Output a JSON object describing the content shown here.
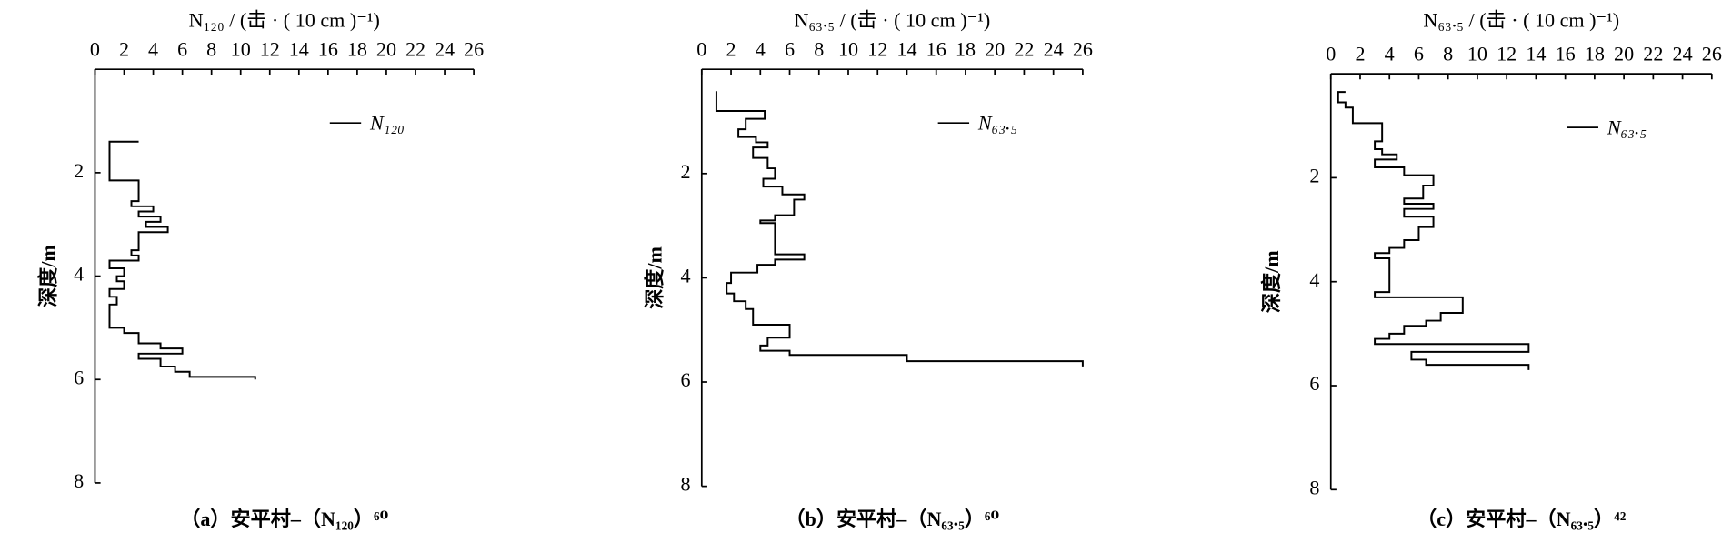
{
  "chart_data": [
    {
      "type": "line",
      "title": "N₁₂₀ / (击 · ( 10 cm )⁻¹)",
      "caption": "（a）安平村–（N₁₂₀）⁶⁰",
      "ylabel": "深度/m",
      "xlim": [
        0,
        26
      ],
      "xticks": [
        0,
        2,
        4,
        6,
        8,
        10,
        12,
        14,
        16,
        18,
        20,
        22,
        24,
        26
      ],
      "ylim": [
        0,
        8
      ],
      "yticks": [
        2,
        4,
        6,
        8
      ],
      "y_inverted": true,
      "legend": "upper right",
      "series": [
        {
          "name": "N₁₂₀",
          "color": "#000000",
          "x": [
            3,
            1,
            1,
            3,
            3,
            2.5,
            2.5,
            4,
            4,
            3,
            3,
            4.5,
            4.5,
            3.5,
            3.5,
            5,
            5,
            3,
            3,
            2.5,
            2.5,
            3,
            3,
            1,
            1,
            2,
            2,
            1.5,
            1.5,
            2,
            2,
            1,
            1,
            1.5,
            1.5,
            1,
            1,
            2,
            2,
            3,
            3,
            4.5,
            4.5,
            6,
            6,
            3,
            3,
            4.5,
            4.5,
            5.5,
            5.5,
            6.5,
            6.5,
            11,
            11
          ],
          "values": [
            1.4,
            1.4,
            2.15,
            2.15,
            2.55,
            2.55,
            2.65,
            2.65,
            2.75,
            2.75,
            2.85,
            2.85,
            2.95,
            2.95,
            3.05,
            3.05,
            3.15,
            3.15,
            3.5,
            3.5,
            3.6,
            3.6,
            3.7,
            3.7,
            3.85,
            3.85,
            4.0,
            4.0,
            4.1,
            4.1,
            4.25,
            4.25,
            4.4,
            4.4,
            4.55,
            4.55,
            5.0,
            5.0,
            5.1,
            5.1,
            5.3,
            5.3,
            5.4,
            5.4,
            5.5,
            5.5,
            5.6,
            5.6,
            5.75,
            5.75,
            5.85,
            5.85,
            5.95,
            5.95,
            6.0
          ]
        }
      ]
    },
    {
      "type": "line",
      "title": "N₆₃.₅ / (击 · ( 10 cm )⁻¹)",
      "caption": "（b）安平村–（N₆₃.₅）⁶⁰",
      "ylabel": "深度/m",
      "xlim": [
        0,
        26
      ],
      "xticks": [
        0,
        2,
        4,
        6,
        8,
        10,
        12,
        14,
        16,
        18,
        20,
        22,
        24,
        26
      ],
      "ylim": [
        0,
        8
      ],
      "yticks": [
        2,
        4,
        6,
        8
      ],
      "y_inverted": true,
      "legend": "upper right",
      "series": [
        {
          "name": "N₆₃.₅",
          "color": "#000000",
          "x": [
            1,
            1,
            4.3,
            4.3,
            3,
            3,
            2.5,
            2.5,
            3.7,
            3.7,
            4.5,
            4.5,
            3.5,
            3.5,
            4.5,
            4.5,
            5,
            5,
            4.2,
            4.2,
            5.5,
            5.5,
            7,
            7,
            6.3,
            6.3,
            5,
            5,
            4,
            4,
            5,
            5,
            7,
            7,
            5,
            5,
            3.8,
            3.8,
            2,
            2,
            1.7,
            1.7,
            2.2,
            2.2,
            3,
            3,
            3.5,
            3.5,
            6,
            6,
            4.5,
            4.5,
            4,
            4,
            6,
            6,
            14,
            14,
            26,
            26
          ],
          "values": [
            0.42,
            0.8,
            0.8,
            0.95,
            0.95,
            1.15,
            1.15,
            1.3,
            1.3,
            1.4,
            1.4,
            1.5,
            1.5,
            1.7,
            1.7,
            1.9,
            1.9,
            2.1,
            2.1,
            2.25,
            2.25,
            2.4,
            2.4,
            2.5,
            2.5,
            2.8,
            2.8,
            2.9,
            2.9,
            2.95,
            2.95,
            3.55,
            3.55,
            3.65,
            3.65,
            3.75,
            3.75,
            3.9,
            3.9,
            4.1,
            4.1,
            4.3,
            4.3,
            4.45,
            4.45,
            4.6,
            4.6,
            4.9,
            4.9,
            5.15,
            5.15,
            5.3,
            5.3,
            5.4,
            5.4,
            5.48,
            5.48,
            5.6,
            5.6,
            5.7
          ]
        }
      ]
    },
    {
      "type": "line",
      "title": "N₆₃.₅ / (击 · ( 10 cm )⁻¹)",
      "caption": "（c）安平村–（N₆₃.₅）⁴²",
      "ylabel": "深度/m",
      "xlim": [
        0,
        26
      ],
      "xticks": [
        0,
        2,
        4,
        6,
        8,
        10,
        12,
        14,
        16,
        18,
        20,
        22,
        24,
        26
      ],
      "ylim": [
        0,
        8
      ],
      "yticks": [
        2,
        4,
        6,
        8
      ],
      "y_inverted": true,
      "legend": "upper right",
      "series": [
        {
          "name": "N₆₃.₅",
          "color": "#000000",
          "x": [
            1,
            0.5,
            0.5,
            1,
            1,
            1.5,
            1.5,
            3.5,
            3.5,
            3,
            3,
            3.5,
            3.5,
            4.5,
            4.5,
            3,
            3,
            5,
            5,
            7,
            7,
            6.3,
            6.3,
            5,
            5,
            7,
            7,
            5,
            5,
            7,
            7,
            6,
            6,
            5,
            5,
            4,
            4,
            3,
            3,
            4,
            4,
            3,
            3,
            9,
            9,
            7.5,
            7.5,
            6.5,
            6.5,
            5,
            5,
            4,
            4,
            3,
            3,
            13.5,
            13.5,
            5.5,
            5.5,
            6.5,
            6.5,
            13.5,
            13.5
          ],
          "values": [
            0.35,
            0.35,
            0.55,
            0.55,
            0.65,
            0.65,
            0.95,
            0.95,
            1.3,
            1.3,
            1.45,
            1.45,
            1.55,
            1.55,
            1.65,
            1.65,
            1.8,
            1.8,
            1.95,
            1.95,
            2.15,
            2.15,
            2.4,
            2.4,
            2.5,
            2.5,
            2.6,
            2.6,
            2.75,
            2.75,
            2.95,
            2.95,
            3.2,
            3.2,
            3.35,
            3.35,
            3.45,
            3.45,
            3.55,
            3.55,
            4.2,
            4.2,
            4.3,
            4.3,
            4.6,
            4.6,
            4.75,
            4.75,
            4.85,
            4.85,
            5.0,
            5.0,
            5.1,
            5.1,
            5.2,
            5.2,
            5.35,
            5.35,
            5.5,
            5.5,
            5.6,
            5.6,
            5.7
          ]
        }
      ]
    }
  ]
}
